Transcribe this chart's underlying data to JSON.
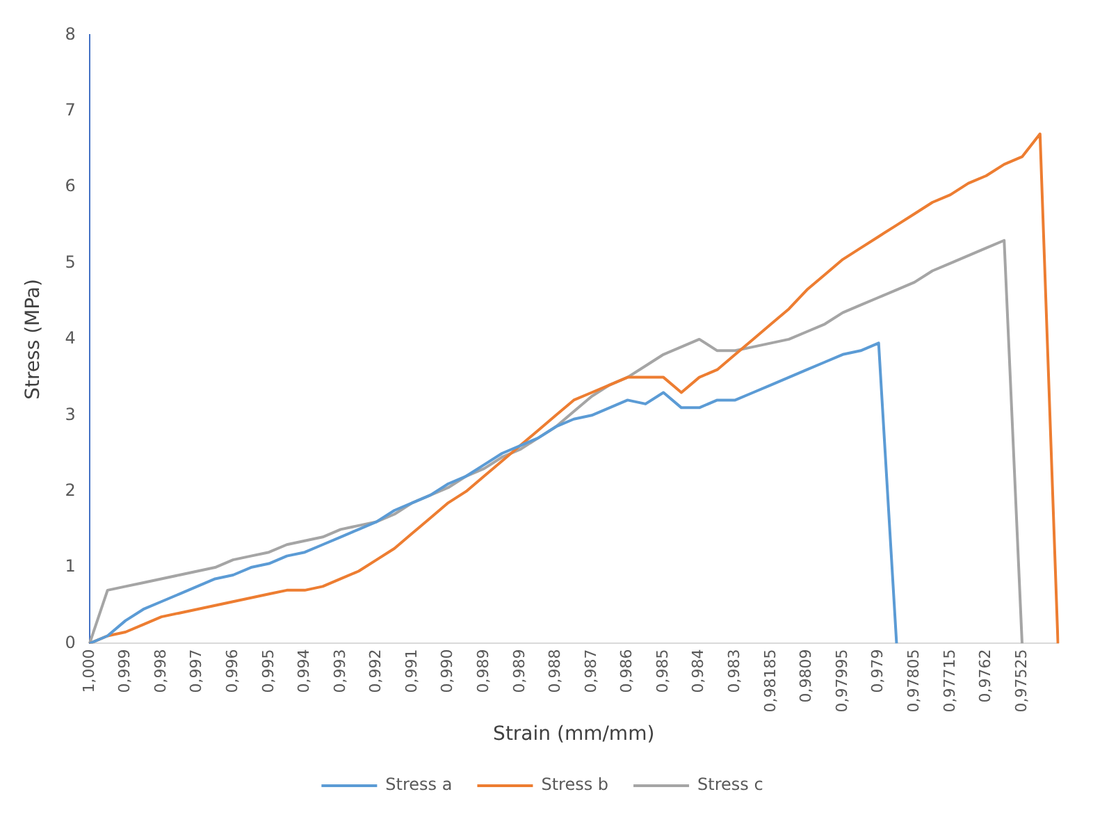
{
  "chart_data": {
    "type": "line",
    "xlabel": "Strain (mm/mm)",
    "ylabel": "Stress (MPa)",
    "categories": [
      "1,000",
      null,
      "0,999",
      null,
      "0,998",
      null,
      "0,997",
      null,
      "0,996",
      null,
      "0,995",
      null,
      "0,994",
      null,
      "0,993",
      null,
      "0,992",
      null,
      "0,991",
      null,
      "0,990",
      null,
      "0,989",
      null,
      "0,989",
      null,
      "0,988",
      null,
      "0,987",
      null,
      "0,986",
      null,
      "0,985",
      null,
      "0,984",
      null,
      "0,983",
      null,
      "0,98185",
      null,
      "0,9809",
      null,
      "0,97995",
      null,
      "0,979",
      null,
      "0,97805",
      null,
      "0,97715",
      null,
      "0,9762",
      null,
      "0,97525",
      null,
      null
    ],
    "series": [
      {
        "name": "Stress a",
        "color": "#5b9bd5",
        "values": [
          0,
          0.1,
          0.3,
          0.45,
          0.55,
          0.65,
          0.75,
          0.85,
          0.9,
          1.0,
          1.05,
          1.15,
          1.2,
          1.3,
          1.4,
          1.5,
          1.6,
          1.75,
          1.85,
          1.95,
          2.1,
          2.2,
          2.35,
          2.5,
          2.6,
          2.7,
          2.85,
          2.95,
          3.0,
          3.1,
          3.2,
          3.15,
          3.3,
          3.1,
          3.1,
          3.2,
          3.2,
          3.3,
          3.4,
          3.5,
          3.6,
          3.7,
          3.8,
          3.85,
          3.95,
          0,
          null,
          null,
          null,
          null,
          null,
          null,
          null,
          null,
          null
        ]
      },
      {
        "name": "Stress b",
        "color": "#ed7d31",
        "values": [
          0,
          0.1,
          0.15,
          0.25,
          0.35,
          0.4,
          0.45,
          0.5,
          0.55,
          0.6,
          0.65,
          0.7,
          0.7,
          0.75,
          0.85,
          0.95,
          1.1,
          1.25,
          1.45,
          1.65,
          1.85,
          2.0,
          2.2,
          2.4,
          2.6,
          2.8,
          3.0,
          3.2,
          3.3,
          3.4,
          3.5,
          3.5,
          3.5,
          3.3,
          3.5,
          3.6,
          3.8,
          4.0,
          4.2,
          4.4,
          4.65,
          4.85,
          5.05,
          5.2,
          5.35,
          5.5,
          5.65,
          5.8,
          5.9,
          6.05,
          6.15,
          6.3,
          6.4,
          6.7,
          0
        ]
      },
      {
        "name": "Stress c",
        "color": "#a5a5a5",
        "values": [
          0,
          0.7,
          0.75,
          0.8,
          0.85,
          0.9,
          0.95,
          1.0,
          1.1,
          1.15,
          1.2,
          1.3,
          1.35,
          1.4,
          1.5,
          1.55,
          1.6,
          1.7,
          1.85,
          1.95,
          2.05,
          2.2,
          2.3,
          2.45,
          2.55,
          2.7,
          2.85,
          3.05,
          3.25,
          3.4,
          3.5,
          3.65,
          3.8,
          3.9,
          4.0,
          3.85,
          3.85,
          3.9,
          3.95,
          4.0,
          4.1,
          4.2,
          4.35,
          4.45,
          4.55,
          4.65,
          4.75,
          4.9,
          5.0,
          5.1,
          5.2,
          5.3,
          0,
          null,
          null
        ]
      }
    ],
    "ylim": [
      0,
      8
    ],
    "yticks": [
      0,
      1,
      2,
      3,
      4,
      5,
      6,
      7,
      8
    ],
    "grid": false,
    "legend": "bottom",
    "marker": "none",
    "line_style": "solid"
  }
}
